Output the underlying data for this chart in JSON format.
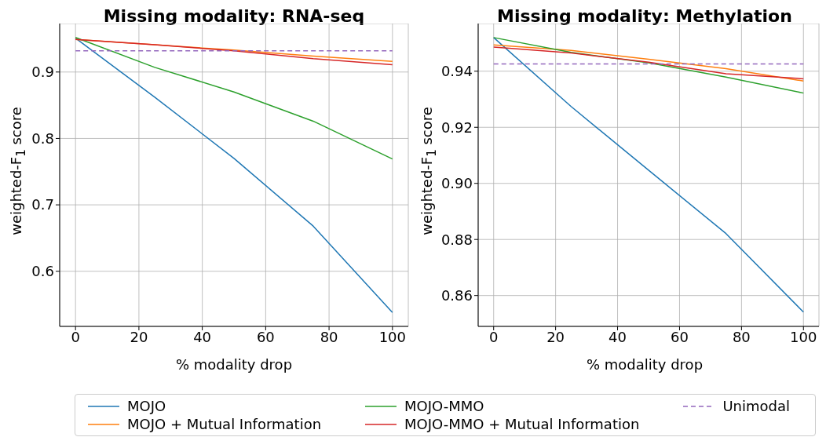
{
  "chart_data": [
    {
      "type": "line",
      "title": "Missing modality: RNA-seq",
      "xlabel": "% modality drop",
      "ylabel": "weighted-F$_{1}$ score",
      "x": [
        0,
        25,
        50,
        75,
        100
      ],
      "xlim": [
        -5,
        105
      ],
      "xticks": [
        0,
        20,
        40,
        60,
        80,
        100
      ],
      "ylim": [
        0.517,
        0.973
      ],
      "yticks": [
        0.6,
        0.7,
        0.8,
        0.9
      ],
      "grid": true,
      "legend": "bottom",
      "marker": "none",
      "line_style": "solid",
      "series": [
        {
          "name": "MOJO",
          "color": "#1f77b4",
          "values": [
            0.951,
            0.862,
            0.77,
            0.668,
            0.538
          ]
        },
        {
          "name": "MOJO + Mutual Information",
          "color": "#ff7f0e",
          "values": [
            0.949,
            0.941,
            0.933,
            0.924,
            0.916
          ]
        },
        {
          "name": "MOJO-MMO",
          "color": "#2ca02c",
          "values": [
            0.952,
            0.907,
            0.87,
            0.826,
            0.769
          ]
        },
        {
          "name": "MOJO-MMO + Mutual Information",
          "color": "#d62728",
          "values": [
            0.949,
            0.941,
            0.932,
            0.92,
            0.911
          ]
        },
        {
          "name": "Unimodal",
          "color": "#9467bd",
          "line_style": "dashed",
          "values": [
            0.932,
            0.932,
            0.932,
            0.932,
            0.932
          ]
        }
      ]
    },
    {
      "type": "line",
      "title": "Missing modality: Methylation",
      "xlabel": "% modality drop",
      "ylabel": "weighted-F$_{1}$ score",
      "x": [
        0,
        25,
        50,
        75,
        100
      ],
      "xlim": [
        -5,
        105
      ],
      "xticks": [
        0,
        20,
        40,
        60,
        80,
        100
      ],
      "ylim": [
        0.849,
        0.957
      ],
      "yticks": [
        0.86,
        0.88,
        {
          "value": 0.9,
          "label": "0.90"
        },
        0.92,
        0.94
      ],
      "grid": true,
      "marker": "none",
      "line_style": "solid",
      "series": [
        {
          "color": "#1f77b4",
          "values": [
            0.952,
            0.9274,
            0.9047,
            0.8821,
            0.8541
          ]
        },
        {
          "color": "#ff7f0e",
          "values": [
            0.9494,
            0.9474,
            0.9443,
            0.9409,
            0.9365
          ]
        },
        {
          "color": "#2ca02c",
          "values": [
            0.952,
            0.9467,
            0.943,
            0.9379,
            0.9322
          ]
        },
        {
          "color": "#d62728",
          "values": [
            0.9486,
            0.9465,
            0.9432,
            0.9391,
            0.9373
          ]
        },
        {
          "color": "#9467bd",
          "line_style": "dashed",
          "values": [
            0.9426,
            0.9426,
            0.9426,
            0.9426,
            0.9426
          ]
        }
      ]
    }
  ]
}
